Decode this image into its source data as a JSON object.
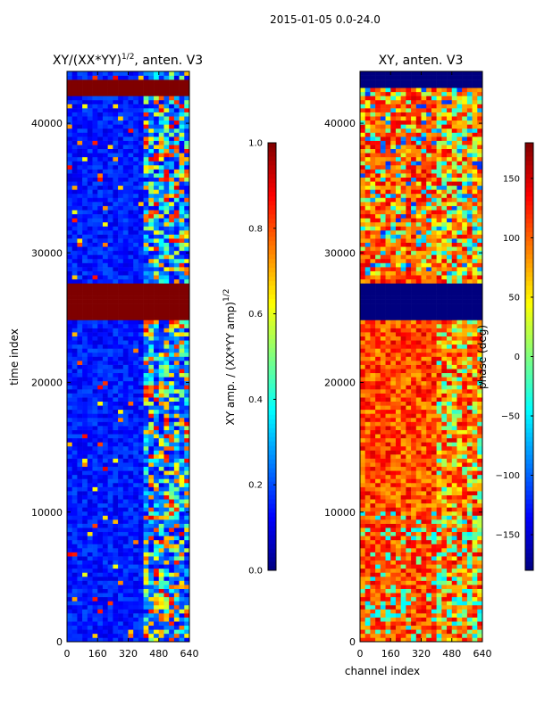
{
  "figure": {
    "suptitle": "2015-01-05 0.0-24.0"
  },
  "colors": {
    "jet": [
      "#00007f",
      "#0000ff",
      "#007fff",
      "#00ffff",
      "#7fff7f",
      "#ffff00",
      "#ff7f00",
      "#ff0000",
      "#7f0000"
    ],
    "flag_band": "#7f0000",
    "masked_band": "#00008b"
  },
  "chart_data": [
    {
      "type": "heatmap",
      "title_main": "XY/(XX*YY)",
      "title_sup": "1/2",
      "title_rest": ", anten. V3",
      "xlabel": "",
      "ylabel": "time index",
      "xlim": [
        0,
        640
      ],
      "ylim": [
        0,
        44000
      ],
      "x_ticks": [
        0,
        160,
        320,
        480,
        640
      ],
      "y_ticks": [
        0,
        10000,
        20000,
        30000,
        40000
      ],
      "x_tick_labels": [
        "0",
        "160",
        "320",
        "480",
        "640"
      ],
      "y_tick_labels": [
        "0",
        "10000",
        "20000",
        "30000",
        "40000"
      ],
      "colorbar": {
        "label_main": "XY amp. / (XX*YY amp)",
        "label_sup": "1/2",
        "range": [
          0.0,
          1.0
        ],
        "ticks": [
          0.0,
          0.2,
          0.4,
          0.6,
          0.8,
          1.0
        ],
        "tick_labels": [
          "0.0",
          "0.2",
          "0.4",
          "0.6",
          "0.8",
          "1.0"
        ]
      },
      "bands": [
        {
          "from": 42000,
          "to": 43400,
          "value": 1.0
        },
        {
          "from": 24900,
          "to": 27500,
          "value": 1.0
        }
      ],
      "active_channels": [
        400,
        640
      ],
      "background_value": 0.15
    },
    {
      "type": "heatmap",
      "title_main": "XY, anten. V3",
      "xlabel": "channel index",
      "ylabel": "",
      "xlim": [
        0,
        640
      ],
      "ylim": [
        0,
        44000
      ],
      "x_ticks": [
        0,
        160,
        320,
        480,
        640
      ],
      "y_ticks": [
        0,
        10000,
        20000,
        30000,
        40000
      ],
      "x_tick_labels": [
        "0",
        "160",
        "320",
        "480",
        "640"
      ],
      "y_tick_labels": [
        "0",
        "10000",
        "20000",
        "30000",
        "40000"
      ],
      "colorbar": {
        "label": "phase (deg)",
        "range": [
          -180,
          180
        ],
        "ticks": [
          -150,
          -100,
          -50,
          0,
          50,
          100,
          150
        ],
        "tick_labels": [
          "−150",
          "−100",
          "−50",
          "0",
          "50",
          "100",
          "150"
        ]
      },
      "bands": [
        {
          "from": 24900,
          "to": 27500,
          "value": -180
        },
        {
          "from": 42700,
          "to": 44000,
          "value": -180
        }
      ],
      "background_value": 110
    }
  ]
}
